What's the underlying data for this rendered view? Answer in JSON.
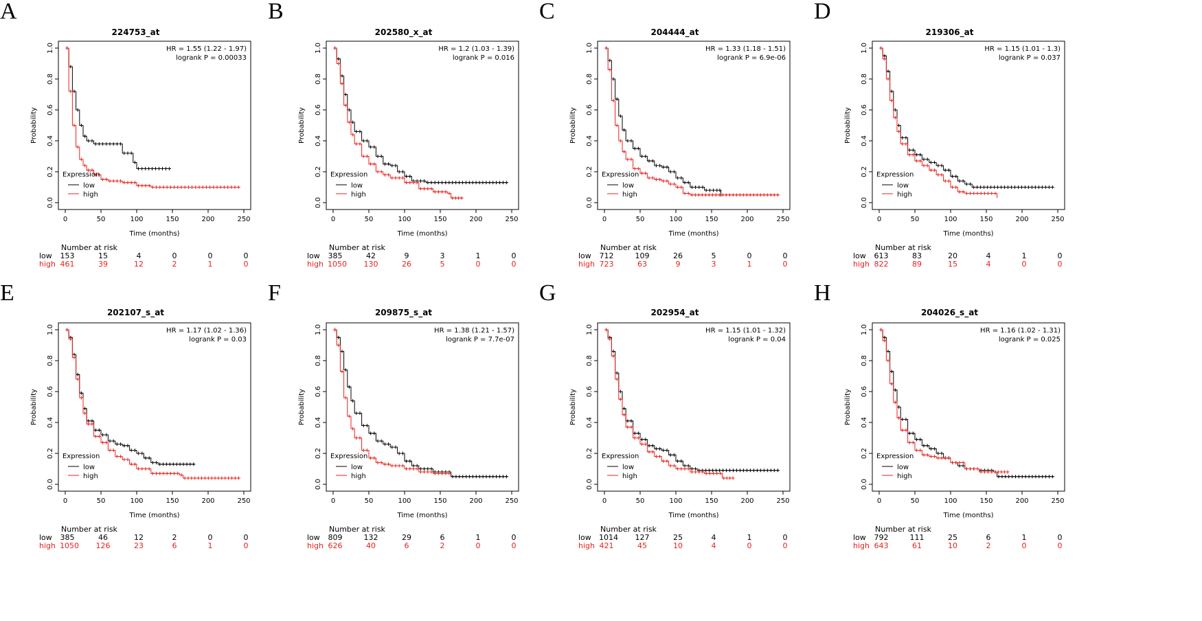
{
  "colors": {
    "low": "#000000",
    "high": "#e8211c"
  },
  "axis_labels": {
    "x": "Time (months)",
    "y": "Probability",
    "legend_title": "Expression",
    "legend_low": "low",
    "legend_high": "high",
    "risk_header": "Number at risk",
    "risk_low": "low",
    "risk_high": "high"
  },
  "chart_data": [
    {
      "type": "line",
      "panel": "A",
      "title": "224753_at",
      "hr_text": "HR = 1.55 (1.22 - 1.97)",
      "p_text": "logrank P = 0.00033",
      "xlim": [
        0,
        250
      ],
      "ylim": [
        0,
        1
      ],
      "xticks": [
        "0",
        "50",
        "100",
        "150",
        "200",
        "250"
      ],
      "yticks": [
        "0.0",
        "0.2",
        "0.4",
        "0.6",
        "0.8",
        "1.0"
      ],
      "series": [
        {
          "name": "low",
          "x": [
            0,
            5,
            10,
            15,
            20,
            25,
            30,
            40,
            60,
            75,
            80,
            95,
            100,
            105,
            148
          ],
          "y": [
            1.0,
            0.88,
            0.72,
            0.6,
            0.5,
            0.43,
            0.4,
            0.38,
            0.38,
            0.38,
            0.32,
            0.26,
            0.22,
            0.22,
            0.22
          ]
        },
        {
          "name": "high",
          "x": [
            0,
            5,
            10,
            15,
            20,
            25,
            30,
            40,
            50,
            60,
            80,
            100,
            120,
            150,
            200,
            245
          ],
          "y": [
            1.0,
            0.72,
            0.5,
            0.36,
            0.28,
            0.24,
            0.21,
            0.18,
            0.15,
            0.14,
            0.13,
            0.11,
            0.1,
            0.1,
            0.1,
            0.1
          ]
        }
      ],
      "risk_times": [
        "0",
        "50",
        "100",
        "150",
        "200",
        "250"
      ],
      "risk_low": [
        "153",
        "15",
        "4",
        "0",
        "0",
        "0"
      ],
      "risk_high": [
        "461",
        "39",
        "12",
        "2",
        "1",
        "0"
      ]
    },
    {
      "type": "line",
      "panel": "B",
      "title": "202580_x_at",
      "hr_text": "HR = 1.2 (1.03 - 1.39)",
      "p_text": "logrank P = 0.016",
      "xlim": [
        0,
        250
      ],
      "ylim": [
        0,
        1
      ],
      "xticks": [
        "0",
        "50",
        "100",
        "150",
        "200",
        "250"
      ],
      "yticks": [
        "0.0",
        "0.2",
        "0.4",
        "0.6",
        "0.8",
        "1.0"
      ],
      "series": [
        {
          "name": "low",
          "x": [
            0,
            5,
            10,
            15,
            20,
            25,
            30,
            40,
            50,
            60,
            70,
            80,
            90,
            100,
            110,
            130,
            160,
            245
          ],
          "y": [
            1.0,
            0.93,
            0.82,
            0.7,
            0.6,
            0.52,
            0.46,
            0.4,
            0.36,
            0.3,
            0.25,
            0.24,
            0.2,
            0.17,
            0.14,
            0.13,
            0.13,
            0.13
          ]
        },
        {
          "name": "high",
          "x": [
            0,
            5,
            10,
            15,
            20,
            25,
            30,
            40,
            50,
            60,
            70,
            80,
            100,
            120,
            140,
            160,
            165,
            182
          ],
          "y": [
            1.0,
            0.9,
            0.77,
            0.63,
            0.52,
            0.44,
            0.38,
            0.3,
            0.25,
            0.2,
            0.18,
            0.16,
            0.13,
            0.09,
            0.07,
            0.06,
            0.03,
            0.03
          ]
        }
      ],
      "risk_times": [
        "0",
        "50",
        "100",
        "150",
        "200",
        "250"
      ],
      "risk_low": [
        "385",
        "42",
        "9",
        "3",
        "1",
        "0"
      ],
      "risk_high": [
        "1050",
        "130",
        "26",
        "5",
        "0",
        "0"
      ]
    },
    {
      "type": "line",
      "panel": "C",
      "title": "204444_at",
      "hr_text": "HR = 1.33 (1.18 - 1.51)",
      "p_text": "logrank P = 6.9e-06",
      "xlim": [
        0,
        250
      ],
      "ylim": [
        0,
        1
      ],
      "xticks": [
        "0",
        "50",
        "100",
        "150",
        "200",
        "250"
      ],
      "yticks": [
        "0.0",
        "0.2",
        "0.4",
        "0.6",
        "0.8",
        "1.0"
      ],
      "series": [
        {
          "name": "low",
          "x": [
            0,
            5,
            10,
            15,
            20,
            25,
            30,
            40,
            50,
            60,
            70,
            80,
            90,
            100,
            110,
            120,
            140,
            160,
            163
          ],
          "y": [
            1.0,
            0.92,
            0.8,
            0.67,
            0.56,
            0.47,
            0.4,
            0.35,
            0.3,
            0.27,
            0.24,
            0.23,
            0.2,
            0.16,
            0.13,
            0.1,
            0.08,
            0.08,
            0.04
          ]
        },
        {
          "name": "high",
          "x": [
            0,
            5,
            10,
            15,
            20,
            25,
            30,
            40,
            50,
            60,
            70,
            80,
            90,
            100,
            110,
            120,
            245
          ],
          "y": [
            1.0,
            0.86,
            0.66,
            0.5,
            0.4,
            0.33,
            0.28,
            0.22,
            0.19,
            0.16,
            0.15,
            0.14,
            0.12,
            0.1,
            0.06,
            0.05,
            0.05
          ]
        }
      ],
      "risk_times": [
        "0",
        "50",
        "100",
        "150",
        "200",
        "250"
      ],
      "risk_low": [
        "712",
        "109",
        "26",
        "5",
        "0",
        "0"
      ],
      "risk_high": [
        "723",
        "63",
        "9",
        "3",
        "1",
        "0"
      ]
    },
    {
      "type": "line",
      "panel": "D",
      "title": "219306_at",
      "hr_text": "HR = 1.15 (1.01 - 1.3)",
      "p_text": "logrank P = 0.037",
      "xlim": [
        0,
        250
      ],
      "ylim": [
        0,
        1
      ],
      "xticks": [
        "0",
        "50",
        "100",
        "150",
        "200",
        "250"
      ],
      "yticks": [
        "0.0",
        "0.2",
        "0.4",
        "0.6",
        "0.8",
        "1.0"
      ],
      "series": [
        {
          "name": "low",
          "x": [
            0,
            5,
            10,
            15,
            20,
            25,
            30,
            40,
            50,
            60,
            70,
            80,
            90,
            100,
            110,
            120,
            130,
            245
          ],
          "y": [
            1.0,
            0.95,
            0.85,
            0.72,
            0.6,
            0.5,
            0.42,
            0.34,
            0.31,
            0.28,
            0.26,
            0.24,
            0.21,
            0.17,
            0.14,
            0.12,
            0.1,
            0.1
          ]
        },
        {
          "name": "high",
          "x": [
            0,
            5,
            10,
            15,
            20,
            25,
            30,
            40,
            50,
            60,
            70,
            80,
            90,
            100,
            110,
            120,
            140,
            160,
            165
          ],
          "y": [
            1.0,
            0.93,
            0.8,
            0.66,
            0.55,
            0.46,
            0.38,
            0.31,
            0.27,
            0.24,
            0.21,
            0.18,
            0.14,
            0.1,
            0.07,
            0.06,
            0.06,
            0.06,
            0.03
          ]
        }
      ],
      "risk_times": [
        "0",
        "50",
        "100",
        "150",
        "200",
        "250"
      ],
      "risk_low": [
        "613",
        "83",
        "20",
        "4",
        "1",
        "0"
      ],
      "risk_high": [
        "822",
        "89",
        "15",
        "4",
        "0",
        "0"
      ]
    },
    {
      "type": "line",
      "panel": "E",
      "title": "202107_s_at",
      "hr_text": "HR = 1.17 (1.02 - 1.36)",
      "p_text": "logrank P = 0.03",
      "xlim": [
        0,
        250
      ],
      "ylim": [
        0,
        1
      ],
      "xticks": [
        "0",
        "50",
        "100",
        "150",
        "200",
        "250"
      ],
      "yticks": [
        "0.0",
        "0.2",
        "0.4",
        "0.6",
        "0.8",
        "1.0"
      ],
      "series": [
        {
          "name": "low",
          "x": [
            0,
            5,
            10,
            15,
            20,
            25,
            30,
            40,
            50,
            60,
            70,
            80,
            90,
            100,
            110,
            120,
            130,
            182
          ],
          "y": [
            1.0,
            0.95,
            0.84,
            0.71,
            0.59,
            0.49,
            0.41,
            0.35,
            0.32,
            0.28,
            0.26,
            0.25,
            0.22,
            0.2,
            0.17,
            0.14,
            0.13,
            0.13
          ]
        },
        {
          "name": "high",
          "x": [
            0,
            5,
            10,
            15,
            20,
            25,
            30,
            40,
            50,
            60,
            70,
            80,
            90,
            100,
            120,
            160,
            165,
            245
          ],
          "y": [
            1.0,
            0.94,
            0.82,
            0.68,
            0.56,
            0.46,
            0.39,
            0.31,
            0.27,
            0.22,
            0.18,
            0.16,
            0.13,
            0.1,
            0.07,
            0.06,
            0.04,
            0.04
          ]
        }
      ],
      "risk_times": [
        "0",
        "50",
        "100",
        "150",
        "200",
        "250"
      ],
      "risk_low": [
        "385",
        "46",
        "12",
        "2",
        "0",
        "0"
      ],
      "risk_high": [
        "1050",
        "126",
        "23",
        "6",
        "1",
        "0"
      ]
    },
    {
      "type": "line",
      "panel": "F",
      "title": "209875_s_at",
      "hr_text": "HR = 1.38 (1.21 - 1.57)",
      "p_text": "logrank P = 7.7e-07",
      "xlim": [
        0,
        250
      ],
      "ylim": [
        0,
        1
      ],
      "xticks": [
        "0",
        "50",
        "100",
        "150",
        "200",
        "250"
      ],
      "yticks": [
        "0.0",
        "0.2",
        "0.4",
        "0.6",
        "0.8",
        "1.0"
      ],
      "series": [
        {
          "name": "low",
          "x": [
            0,
            5,
            10,
            15,
            20,
            25,
            30,
            40,
            50,
            60,
            70,
            80,
            90,
            100,
            110,
            120,
            140,
            160,
            165,
            245
          ],
          "y": [
            1.0,
            0.95,
            0.86,
            0.74,
            0.63,
            0.54,
            0.46,
            0.38,
            0.33,
            0.28,
            0.26,
            0.24,
            0.2,
            0.15,
            0.12,
            0.1,
            0.08,
            0.08,
            0.05,
            0.05
          ]
        },
        {
          "name": "high",
          "x": [
            0,
            5,
            10,
            15,
            20,
            25,
            30,
            40,
            50,
            60,
            70,
            80,
            100,
            120,
            140,
            160,
            165
          ],
          "y": [
            1.0,
            0.9,
            0.73,
            0.56,
            0.44,
            0.36,
            0.3,
            0.22,
            0.17,
            0.14,
            0.13,
            0.12,
            0.1,
            0.08,
            0.07,
            0.07,
            0.07
          ]
        }
      ],
      "risk_times": [
        "0",
        "50",
        "100",
        "150",
        "200",
        "250"
      ],
      "risk_low": [
        "809",
        "132",
        "29",
        "6",
        "1",
        "0"
      ],
      "risk_high": [
        "626",
        "40",
        "6",
        "2",
        "0",
        "0"
      ]
    },
    {
      "type": "line",
      "panel": "G",
      "title": "202954_at",
      "hr_text": "HR = 1.15 (1.01 - 1.32)",
      "p_text": "logrank P = 0.04",
      "xlim": [
        0,
        250
      ],
      "ylim": [
        0,
        1
      ],
      "xticks": [
        "0",
        "50",
        "100",
        "150",
        "200",
        "250"
      ],
      "yticks": [
        "0.0",
        "0.2",
        "0.4",
        "0.6",
        "0.8",
        "1.0"
      ],
      "series": [
        {
          "name": "low",
          "x": [
            0,
            5,
            10,
            15,
            20,
            25,
            30,
            40,
            50,
            60,
            70,
            80,
            90,
            100,
            110,
            120,
            130,
            245
          ],
          "y": [
            1.0,
            0.95,
            0.86,
            0.72,
            0.6,
            0.49,
            0.41,
            0.33,
            0.29,
            0.25,
            0.23,
            0.22,
            0.19,
            0.15,
            0.12,
            0.1,
            0.09,
            0.09
          ]
        },
        {
          "name": "high",
          "x": [
            0,
            5,
            10,
            15,
            20,
            25,
            30,
            40,
            50,
            60,
            70,
            80,
            90,
            100,
            120,
            140,
            160,
            165,
            182
          ],
          "y": [
            1.0,
            0.94,
            0.83,
            0.68,
            0.55,
            0.45,
            0.37,
            0.3,
            0.26,
            0.21,
            0.18,
            0.15,
            0.12,
            0.1,
            0.08,
            0.07,
            0.07,
            0.04,
            0.04
          ]
        }
      ],
      "risk_times": [
        "0",
        "50",
        "100",
        "150",
        "200",
        "250"
      ],
      "risk_low": [
        "1014",
        "127",
        "25",
        "4",
        "1",
        "0"
      ],
      "risk_high": [
        "421",
        "45",
        "10",
        "4",
        "0",
        "0"
      ]
    },
    {
      "type": "line",
      "panel": "H",
      "title": "204026_s_at",
      "hr_text": "HR = 1.16 (1.02 - 1.31)",
      "p_text": "logrank P = 0.025",
      "xlim": [
        0,
        250
      ],
      "ylim": [
        0,
        1
      ],
      "xticks": [
        "0",
        "50",
        "100",
        "150",
        "200",
        "250"
      ],
      "yticks": [
        "0.0",
        "0.2",
        "0.4",
        "0.6",
        "0.8",
        "1.0"
      ],
      "series": [
        {
          "name": "low",
          "x": [
            0,
            5,
            10,
            15,
            20,
            25,
            30,
            40,
            50,
            60,
            70,
            80,
            90,
            100,
            110,
            120,
            140,
            160,
            165,
            245
          ],
          "y": [
            1.0,
            0.95,
            0.86,
            0.73,
            0.61,
            0.5,
            0.42,
            0.33,
            0.29,
            0.25,
            0.23,
            0.2,
            0.17,
            0.14,
            0.12,
            0.1,
            0.09,
            0.08,
            0.05,
            0.05
          ]
        },
        {
          "name": "high",
          "x": [
            0,
            5,
            10,
            15,
            20,
            25,
            30,
            40,
            50,
            60,
            70,
            80,
            100,
            120,
            140,
            160,
            182
          ],
          "y": [
            1.0,
            0.93,
            0.8,
            0.65,
            0.53,
            0.43,
            0.35,
            0.27,
            0.22,
            0.19,
            0.18,
            0.17,
            0.14,
            0.1,
            0.08,
            0.08,
            0.08
          ]
        }
      ],
      "risk_times": [
        "0",
        "50",
        "100",
        "150",
        "200",
        "250"
      ],
      "risk_low": [
        "792",
        "111",
        "25",
        "6",
        "1",
        "0"
      ],
      "risk_high": [
        "643",
        "61",
        "10",
        "2",
        "0",
        "0"
      ]
    }
  ]
}
